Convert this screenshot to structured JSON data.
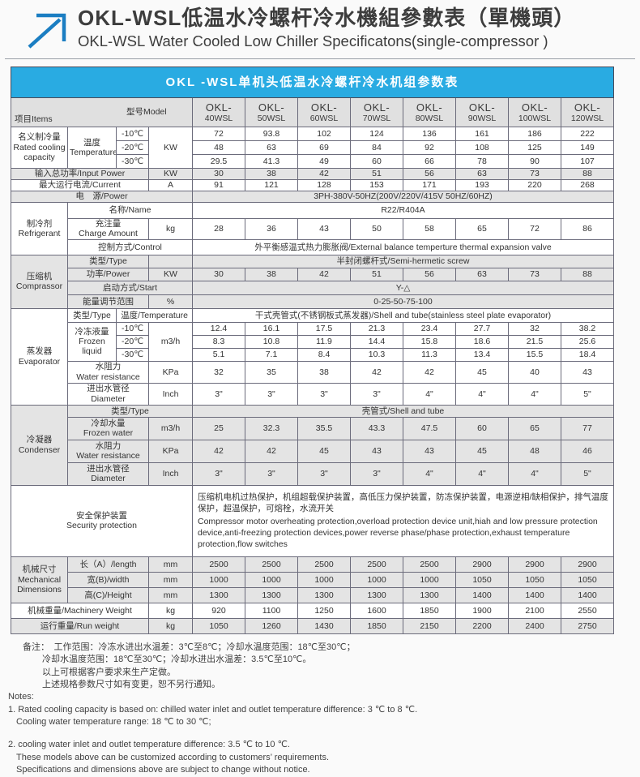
{
  "colors": {
    "accent_blue": "#29abe2",
    "row_gray": "#e4e4e4",
    "header_gray": "#e0e0e0",
    "border": "#6b6b7b",
    "arrow_blue": "#1b7ec2"
  },
  "title": {
    "zh": "OKL-WSL低温水冷螺杆冷水機組參數表（單機頭）",
    "en": "OKL-WSL Water Cooled Low Chiller Specificatons(single-compressor )"
  },
  "table": {
    "banner": "OKL -WSL单机头低温水冷螺杆冷水机组参数表",
    "corner": {
      "items": "项目Items",
      "model": "型号Model"
    },
    "models": [
      "OKL-\n40WSL",
      "OKL-\n50WSL",
      "OKL-\n60WSL",
      "OKL-\n70WSL",
      "OKL-\n80WSL",
      "OKL-\n90WSL",
      "OKL-\n100WSL",
      "OKL-\n120WSL"
    ],
    "cooling": {
      "label": "名义制冷量\nRated cooling\ncapacity",
      "temp_label": "温度\nTemperature",
      "unit": "KW",
      "rows": [
        {
          "temp": "-10℃",
          "values": [
            "72",
            "93.8",
            "102",
            "124",
            "136",
            "161",
            "186",
            "222"
          ]
        },
        {
          "temp": "-20℃",
          "values": [
            "48",
            "63",
            "69",
            "84",
            "92",
            "108",
            "125",
            "149"
          ]
        },
        {
          "temp": "-30℃",
          "values": [
            "29.5",
            "41.3",
            "49",
            "60",
            "66",
            "78",
            "90",
            "107"
          ]
        }
      ]
    },
    "input_power": {
      "label": "输入总功率/Input Power",
      "unit": "KW",
      "values": [
        "30",
        "38",
        "42",
        "51",
        "56",
        "63",
        "73",
        "88"
      ]
    },
    "current": {
      "label": "最大运行电流/Current",
      "unit": "A",
      "values": [
        "91",
        "121",
        "128",
        "153",
        "171",
        "193",
        "220",
        "268"
      ]
    },
    "power_supply": {
      "label": "电　源/Power",
      "value": "3PH-380V-50HZ(200V/220V/415V  50HZ/60HZ)"
    },
    "refrigerant": {
      "label": "制冷剂\nRefrigerant",
      "name_label": "名称/Name",
      "name_value": "R22/R404A",
      "charge_label": "充注量\nCharge Amount",
      "charge_unit": "kg",
      "charge_values": [
        "28",
        "36",
        "43",
        "50",
        "58",
        "65",
        "72",
        "86"
      ],
      "control_label": "控制方式/Control",
      "control_value": "外平衡感温式热力膨胀阀/External balance temperture thermal expansion valve"
    },
    "compressor": {
      "label": "压缩机\nComprassor",
      "type_label": "类型/Type",
      "type_value": "半封闭螺杆式/Semi-hermetic screw",
      "power_label": "功率/Power",
      "power_unit": "KW",
      "power_values": [
        "30",
        "38",
        "42",
        "51",
        "56",
        "63",
        "73",
        "88"
      ],
      "start_label": "启动方式/Start",
      "start_value": "Y-△",
      "energy_label": "能量调节范围",
      "energy_unit": "%",
      "energy_value": "0-25-50-75-100"
    },
    "evaporator": {
      "label": "蒸发器\nEvaporator",
      "type_label": "类型/Type",
      "temp_label": "温度/Temperature",
      "type_value": "干式壳管式(不锈钢板式蒸发器)/Shell and tube(stainless steel plate evaporator)",
      "frozen_label": "冷冻液量\nFrozen liquid",
      "frozen_unit": "m3/h",
      "frozen_rows": [
        {
          "temp": "-10℃",
          "values": [
            "12.4",
            "16.1",
            "17.5",
            "21.3",
            "23.4",
            "27.7",
            "32",
            "38.2"
          ]
        },
        {
          "temp": "-20℃",
          "values": [
            "8.3",
            "10.8",
            "11.9",
            "14.4",
            "15.8",
            "18.6",
            "21.5",
            "25.6"
          ]
        },
        {
          "temp": "-30℃",
          "values": [
            "5.1",
            "7.1",
            "8.4",
            "10.3",
            "11.3",
            "13.4",
            "15.5",
            "18.4"
          ]
        }
      ],
      "resistance_label": "水阻力\nWater resistance",
      "resistance_unit": "KPa",
      "resistance_values": [
        "32",
        "35",
        "38",
        "42",
        "42",
        "45",
        "40",
        "43"
      ],
      "diameter_label": "进出水管径\nDiameter",
      "diameter_unit": "Inch",
      "diameter_values": [
        "3\"",
        "3\"",
        "3\"",
        "3\"",
        "4\"",
        "4\"",
        "4\"",
        "5\""
      ]
    },
    "condenser": {
      "label": "冷凝器\nCondenser",
      "type_label": "类型/Type",
      "type_value": "壳管式/Shell and tube",
      "water_label": "冷却水量\nFrozen water",
      "water_unit": "m3/h",
      "water_values": [
        "25",
        "32.3",
        "35.5",
        "43.3",
        "47.5",
        "60",
        "65",
        "77"
      ],
      "resistance_label": "水阻力\nWater resistance",
      "resistance_unit": "KPa",
      "resistance_values": [
        "42",
        "42",
        "45",
        "43",
        "43",
        "45",
        "48",
        "46"
      ],
      "diameter_label": "进出水管径\nDiameter",
      "diameter_unit": "Inch",
      "diameter_values": [
        "3\"",
        "3\"",
        "3\"",
        "3\"",
        "4\"",
        "4\"",
        "4\"",
        "5\""
      ]
    },
    "security": {
      "label": "安全保护装置\nSecurity protection",
      "text_zh": "压缩机电机过热保护，机组超载保护装置，高低压力保护装置，防冻保护装置，电源逆相/缺相保护，排气温度保护，超温保护，可熔栓，水流开关",
      "text_en": "Compressor motor overheating protection,overload protection device unit,hiah and low pressure protection device,anti-freezing protection devices,power reverse phase/phase protection,exhaust temperature protection,flow switches"
    },
    "dimensions": {
      "label": "机械尺寸\nMechanical\nDimensions",
      "rows": [
        {
          "label": "长（A）/length",
          "unit": "mm",
          "values": [
            "2500",
            "2500",
            "2500",
            "2500",
            "2500",
            "2900",
            "2900",
            "2900"
          ]
        },
        {
          "label": "宽(B)/width",
          "unit": "mm",
          "values": [
            "1000",
            "1000",
            "1000",
            "1000",
            "1000",
            "1050",
            "1050",
            "1050"
          ]
        },
        {
          "label": "高(C)/Height",
          "unit": "mm",
          "values": [
            "1300",
            "1300",
            "1300",
            "1300",
            "1300",
            "1400",
            "1400",
            "1400"
          ]
        }
      ]
    },
    "machinery_weight": {
      "label": "机械重量/Machinery Weight",
      "unit": "kg",
      "values": [
        "920",
        "1100",
        "1250",
        "1600",
        "1850",
        "1900",
        "2100",
        "2550"
      ]
    },
    "run_weight": {
      "label": "运行重量/Run weight",
      "unit": "kg",
      "values": [
        "1050",
        "1260",
        "1430",
        "1850",
        "2150",
        "2200",
        "2400",
        "2750"
      ]
    }
  },
  "notes": {
    "zh": [
      "备注：　工作范围：冷冻水进出水温差：3℃至8℃；冷却水温度范围：18℃至30℃；",
      "冷却水温度范围：18℃至30℃；冷却水进出水温差：3.5℃至10℃。",
      "以上可根据客户要求来生产定做。",
      "上述规格参数尺寸如有变更，恕不另行通知。"
    ],
    "en": [
      "Notes:",
      "1. Rated cooling capacity is based on: chilled water inlet and outlet temperature  difference: 3 ℃ to 8 ℃.",
      "Cooling water temperature  range: 18 ℃ to 30 ℃;",
      "2. cooling water inlet and outlet temperature  difference: 3.5 ℃ to 10 ℃.",
      "These models above can be customized according to customers’  requirements.",
      "Specifications  and dimensions above are subject to change without notice."
    ]
  }
}
